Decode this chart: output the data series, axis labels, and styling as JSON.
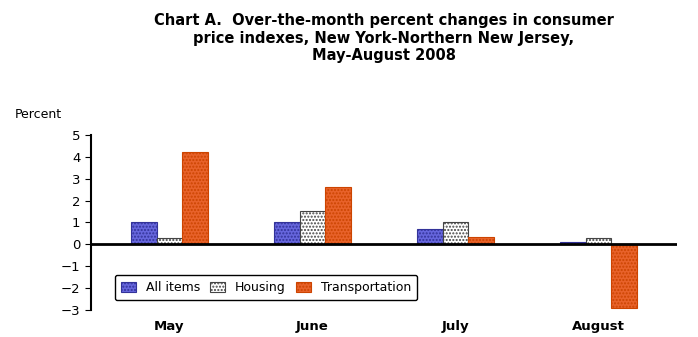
{
  "title": "Chart A.  Over-the-month percent changes in consumer\nprice indexes, New York-Northern New Jersey,\nMay-August 2008",
  "ylabel": "Percent",
  "months": [
    "May",
    "June",
    "July",
    "August"
  ],
  "series": {
    "All items": [
      1.0,
      1.0,
      0.7,
      0.1
    ],
    "Housing": [
      0.3,
      1.5,
      1.0,
      0.3
    ],
    "Transportation": [
      4.2,
      2.6,
      0.35,
      -2.9
    ]
  },
  "colors": {
    "All items": "#6666dd",
    "Housing": "#ffffff",
    "Transportation": "#e8622a"
  },
  "hatch": {
    "All items": ".....",
    "Housing": ".....",
    "Transportation": "....."
  },
  "edgecolors": {
    "All items": "#333399",
    "Housing": "#444444",
    "Transportation": "#cc4400"
  },
  "ylim": [
    -3,
    5
  ],
  "yticks": [
    -3,
    -2,
    -1,
    0,
    1,
    2,
    3,
    4,
    5
  ],
  "bar_width": 0.18,
  "legend_labels": [
    "All items",
    "Housing",
    "Transportation"
  ],
  "title_fontsize": 10.5,
  "axis_label_fontsize": 9,
  "tick_fontsize": 9.5,
  "legend_fontsize": 9
}
